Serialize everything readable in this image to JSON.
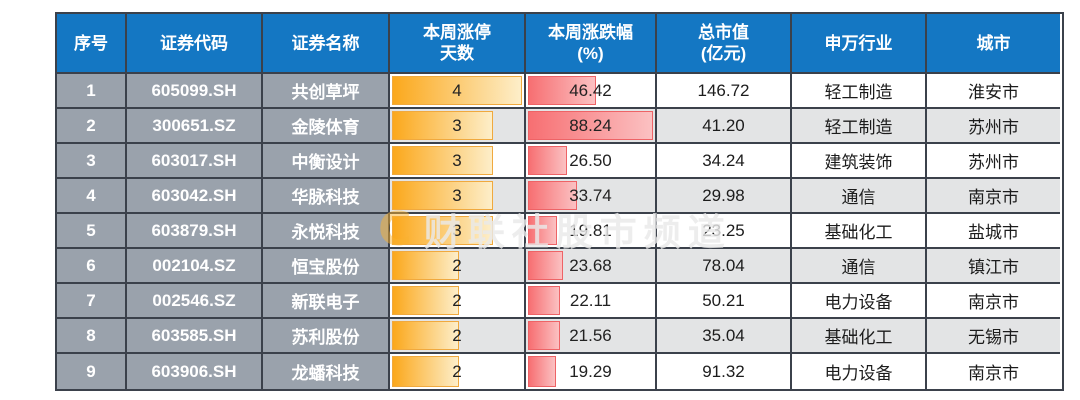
{
  "table": {
    "headers": [
      {
        "lines": [
          "序号"
        ]
      },
      {
        "lines": [
          "证券代码"
        ]
      },
      {
        "lines": [
          "证券名称"
        ]
      },
      {
        "lines": [
          "本周涨停",
          "天数"
        ]
      },
      {
        "lines": [
          "本周涨跌幅",
          "(%)"
        ]
      },
      {
        "lines": [
          "总市值",
          "(亿元)"
        ]
      },
      {
        "lines": [
          "申万行业"
        ]
      },
      {
        "lines": [
          "城市"
        ]
      }
    ]
  },
  "chart_data": {
    "type": "table",
    "columns": [
      "序号",
      "证券代码",
      "证券名称",
      "本周涨停天数",
      "本周涨跌幅(%)",
      "总市值(亿元)",
      "申万行业",
      "城市"
    ],
    "bars": {
      "days_max": 4,
      "chg_max": 88.24,
      "days_bar_style": "orange gradient data bar",
      "chg_bar_style": "red gradient data bar"
    },
    "rows": [
      {
        "seq": "1",
        "code": "605099.SH",
        "name": "共创草坪",
        "days": "4",
        "chg": "46.42",
        "cap": "146.72",
        "industry": "轻工制造",
        "city": "淮安市"
      },
      {
        "seq": "2",
        "code": "300651.SZ",
        "name": "金陵体育",
        "days": "3",
        "chg": "88.24",
        "cap": "41.20",
        "industry": "轻工制造",
        "city": "苏州市"
      },
      {
        "seq": "3",
        "code": "603017.SH",
        "name": "中衡设计",
        "days": "3",
        "chg": "26.50",
        "cap": "34.24",
        "industry": "建筑装饰",
        "city": "苏州市"
      },
      {
        "seq": "4",
        "code": "603042.SH",
        "name": "华脉科技",
        "days": "3",
        "chg": "33.74",
        "cap": "29.98",
        "industry": "通信",
        "city": "南京市"
      },
      {
        "seq": "5",
        "code": "603879.SH",
        "name": "永悦科技",
        "days": "3",
        "chg": "19.81",
        "cap": "23.25",
        "industry": "基础化工",
        "city": "盐城市"
      },
      {
        "seq": "6",
        "code": "002104.SZ",
        "name": "恒宝股份",
        "days": "2",
        "chg": "23.68",
        "cap": "78.04",
        "industry": "通信",
        "city": "镇江市"
      },
      {
        "seq": "7",
        "code": "002546.SZ",
        "name": "新联电子",
        "days": "2",
        "chg": "22.11",
        "cap": "50.21",
        "industry": "电力设备",
        "city": "南京市"
      },
      {
        "seq": "8",
        "code": "603585.SH",
        "name": "苏利股份",
        "days": "2",
        "chg": "21.56",
        "cap": "35.04",
        "industry": "基础化工",
        "city": "无锡市"
      },
      {
        "seq": "9",
        "code": "603906.SH",
        "name": "龙蟠科技",
        "days": "2",
        "chg": "19.29",
        "cap": "91.32",
        "industry": "电力设备",
        "city": "南京市"
      }
    ]
  },
  "watermark": {
    "logo": "C",
    "text": "财联社股市频道"
  },
  "colors": {
    "header_bg": "#1477c3",
    "left_cell_bg": "#9aa2ac",
    "row_bg": "#ffffff",
    "row_alt_bg": "#e3e4e5",
    "border": "#3b414b",
    "bar_orange_start": "#fba81c",
    "bar_orange_end": "#fdeec9",
    "bar_orange_border": "#f0a93e",
    "bar_red_start": "#f76f72",
    "bar_red_end": "#fbc1c2",
    "bar_red_border": "#ee6366",
    "text_dark": "#1c1c1c",
    "text_light": "#ffffff"
  }
}
